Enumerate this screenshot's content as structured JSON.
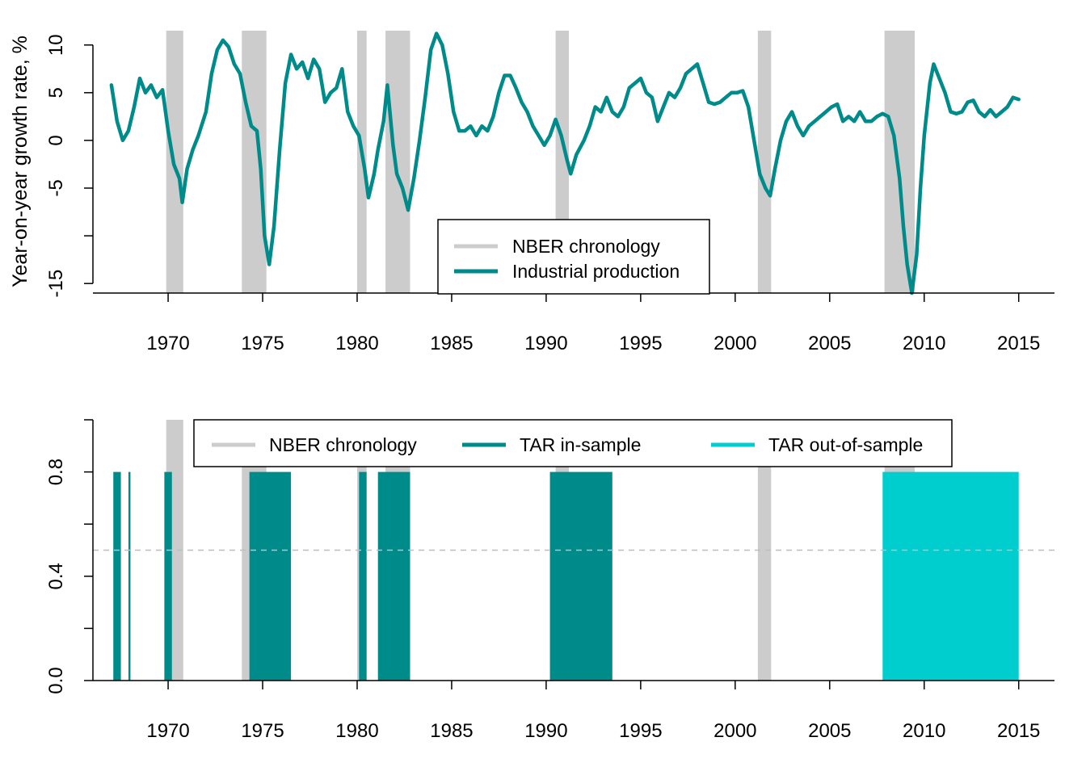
{
  "colors": {
    "nber": "#cccccc",
    "industrial_production": "#008b8b",
    "tar_in_sample": "#008b8b",
    "tar_out_of_sample": "#00cdcd",
    "threshold_line": "#bebebe"
  },
  "chart_data": [
    {
      "type": "line",
      "ylabel": "Year-on-year growth rate, %",
      "xlim": [
        1966,
        2017
      ],
      "ylim": [
        -16,
        11.5
      ],
      "x_ticks": [
        1970,
        1975,
        1980,
        1985,
        1990,
        1995,
        2000,
        2005,
        2010,
        2015
      ],
      "x_tick_labels": [
        "1970",
        "1975",
        "1980",
        "1985",
        "1990",
        "1995",
        "2000",
        "2005",
        "2010",
        "2015"
      ],
      "y_ticks": [
        -15,
        -10,
        -5,
        0,
        5,
        10
      ],
      "y_tick_labels": [
        "-15",
        "",
        "-5",
        "0",
        "5",
        "10"
      ],
      "legend_position": "bottom-center",
      "legend": [
        "NBER chronology",
        "Industrial production"
      ],
      "recessions": [
        [
          1969.9,
          1970.8
        ],
        [
          1973.9,
          1975.2
        ],
        [
          1980.0,
          1980.5
        ],
        [
          1981.5,
          1982.8
        ],
        [
          1990.5,
          1991.2
        ],
        [
          2001.2,
          2001.9
        ],
        [
          2007.9,
          2009.5
        ]
      ],
      "series": [
        {
          "name": "Industrial production",
          "points": [
            [
              1967.0,
              5.8
            ],
            [
              1967.3,
              2.0
            ],
            [
              1967.6,
              0.0
            ],
            [
              1967.9,
              1.0
            ],
            [
              1968.2,
              3.5
            ],
            [
              1968.5,
              6.5
            ],
            [
              1968.8,
              5.0
            ],
            [
              1969.1,
              5.8
            ],
            [
              1969.4,
              4.5
            ],
            [
              1969.7,
              5.3
            ],
            [
              1970.0,
              1.0
            ],
            [
              1970.3,
              -2.5
            ],
            [
              1970.6,
              -4.0
            ],
            [
              1970.75,
              -6.5
            ],
            [
              1971.0,
              -3.0
            ],
            [
              1971.3,
              -1.0
            ],
            [
              1971.6,
              0.5
            ],
            [
              1972.0,
              3.0
            ],
            [
              1972.3,
              7.0
            ],
            [
              1972.6,
              9.5
            ],
            [
              1972.9,
              10.5
            ],
            [
              1973.2,
              9.8
            ],
            [
              1973.5,
              8.0
            ],
            [
              1973.8,
              7.0
            ],
            [
              1974.1,
              4.0
            ],
            [
              1974.4,
              1.5
            ],
            [
              1974.7,
              1.0
            ],
            [
              1974.9,
              -3.0
            ],
            [
              1975.1,
              -10.0
            ],
            [
              1975.35,
              -13.0
            ],
            [
              1975.6,
              -9.0
            ],
            [
              1975.9,
              -1.0
            ],
            [
              1976.2,
              6.0
            ],
            [
              1976.5,
              9.0
            ],
            [
              1976.8,
              7.5
            ],
            [
              1977.1,
              8.2
            ],
            [
              1977.4,
              6.5
            ],
            [
              1977.7,
              8.5
            ],
            [
              1978.0,
              7.5
            ],
            [
              1978.3,
              4.0
            ],
            [
              1978.6,
              5.0
            ],
            [
              1978.9,
              5.5
            ],
            [
              1979.2,
              7.5
            ],
            [
              1979.5,
              3.0
            ],
            [
              1979.8,
              1.5
            ],
            [
              1980.1,
              0.5
            ],
            [
              1980.4,
              -3.0
            ],
            [
              1980.6,
              -6.0
            ],
            [
              1980.9,
              -3.5
            ],
            [
              1981.1,
              -1.0
            ],
            [
              1981.4,
              2.0
            ],
            [
              1981.6,
              5.8
            ],
            [
              1981.9,
              -0.5
            ],
            [
              1982.1,
              -3.5
            ],
            [
              1982.4,
              -5.0
            ],
            [
              1982.7,
              -7.3
            ],
            [
              1983.0,
              -4.0
            ],
            [
              1983.3,
              0.0
            ],
            [
              1983.6,
              4.5
            ],
            [
              1983.9,
              9.5
            ],
            [
              1984.2,
              11.2
            ],
            [
              1984.5,
              10.0
            ],
            [
              1984.8,
              7.0
            ],
            [
              1985.1,
              3.0
            ],
            [
              1985.4,
              1.0
            ],
            [
              1985.7,
              1.0
            ],
            [
              1986.0,
              1.5
            ],
            [
              1986.3,
              0.5
            ],
            [
              1986.6,
              1.5
            ],
            [
              1986.9,
              1.0
            ],
            [
              1987.2,
              2.5
            ],
            [
              1987.5,
              5.0
            ],
            [
              1987.8,
              6.8
            ],
            [
              1988.1,
              6.8
            ],
            [
              1988.4,
              5.5
            ],
            [
              1988.7,
              4.0
            ],
            [
              1989.0,
              3.0
            ],
            [
              1989.3,
              1.5
            ],
            [
              1989.6,
              0.5
            ],
            [
              1989.9,
              -0.5
            ],
            [
              1990.2,
              0.5
            ],
            [
              1990.5,
              2.2
            ],
            [
              1990.8,
              0.5
            ],
            [
              1991.1,
              -2.0
            ],
            [
              1991.3,
              -3.5
            ],
            [
              1991.6,
              -1.5
            ],
            [
              1992.0,
              0.0
            ],
            [
              1992.3,
              1.5
            ],
            [
              1992.6,
              3.5
            ],
            [
              1992.9,
              3.0
            ],
            [
              1993.2,
              4.5
            ],
            [
              1993.5,
              3.0
            ],
            [
              1993.8,
              2.5
            ],
            [
              1994.1,
              3.5
            ],
            [
              1994.4,
              5.5
            ],
            [
              1994.7,
              6.0
            ],
            [
              1995.0,
              6.5
            ],
            [
              1995.3,
              5.0
            ],
            [
              1995.6,
              4.5
            ],
            [
              1995.9,
              2.0
            ],
            [
              1996.2,
              3.5
            ],
            [
              1996.5,
              5.0
            ],
            [
              1996.8,
              4.5
            ],
            [
              1997.1,
              5.5
            ],
            [
              1997.4,
              7.0
            ],
            [
              1997.7,
              7.5
            ],
            [
              1998.0,
              8.0
            ],
            [
              1998.3,
              6.0
            ],
            [
              1998.6,
              4.0
            ],
            [
              1998.9,
              3.8
            ],
            [
              1999.2,
              4.0
            ],
            [
              1999.5,
              4.5
            ],
            [
              1999.8,
              5.0
            ],
            [
              2000.1,
              5.0
            ],
            [
              2000.4,
              5.2
            ],
            [
              2000.7,
              3.5
            ],
            [
              2001.0,
              0.0
            ],
            [
              2001.3,
              -3.5
            ],
            [
              2001.6,
              -5.0
            ],
            [
              2001.85,
              -5.8
            ],
            [
              2002.1,
              -3.0
            ],
            [
              2002.4,
              0.0
            ],
            [
              2002.7,
              2.0
            ],
            [
              2003.0,
              3.0
            ],
            [
              2003.3,
              1.5
            ],
            [
              2003.6,
              0.5
            ],
            [
              2003.9,
              1.5
            ],
            [
              2004.2,
              2.0
            ],
            [
              2004.5,
              2.5
            ],
            [
              2004.8,
              3.0
            ],
            [
              2005.1,
              3.5
            ],
            [
              2005.4,
              3.8
            ],
            [
              2005.7,
              2.0
            ],
            [
              2006.0,
              2.5
            ],
            [
              2006.3,
              2.0
            ],
            [
              2006.6,
              3.0
            ],
            [
              2006.9,
              2.0
            ],
            [
              2007.2,
              2.0
            ],
            [
              2007.5,
              2.5
            ],
            [
              2007.8,
              2.8
            ],
            [
              2008.1,
              2.5
            ],
            [
              2008.4,
              0.5
            ],
            [
              2008.7,
              -4.0
            ],
            [
              2008.9,
              -9.0
            ],
            [
              2009.1,
              -13.0
            ],
            [
              2009.35,
              -16.0
            ],
            [
              2009.6,
              -12.0
            ],
            [
              2009.8,
              -5.0
            ],
            [
              2010.0,
              0.5
            ],
            [
              2010.3,
              6.0
            ],
            [
              2010.5,
              8.0
            ],
            [
              2010.8,
              6.5
            ],
            [
              2011.1,
              5.0
            ],
            [
              2011.4,
              3.0
            ],
            [
              2011.7,
              2.8
            ],
            [
              2012.0,
              3.0
            ],
            [
              2012.3,
              4.0
            ],
            [
              2012.6,
              4.2
            ],
            [
              2012.9,
              3.0
            ],
            [
              2013.2,
              2.5
            ],
            [
              2013.5,
              3.2
            ],
            [
              2013.8,
              2.5
            ],
            [
              2014.1,
              3.0
            ],
            [
              2014.4,
              3.5
            ],
            [
              2014.7,
              4.5
            ],
            [
              2015.0,
              4.3
            ]
          ]
        }
      ]
    },
    {
      "type": "area",
      "xlim": [
        1966,
        2017
      ],
      "ylim": [
        0,
        1.0
      ],
      "x_ticks": [
        1970,
        1975,
        1980,
        1985,
        1990,
        1995,
        2000,
        2005,
        2010,
        2015
      ],
      "x_tick_labels": [
        "1970",
        "1975",
        "1980",
        "1985",
        "1990",
        "1995",
        "2000",
        "2005",
        "2010",
        "2015"
      ],
      "y_ticks": [
        0.0,
        0.2,
        0.4,
        0.6,
        0.8,
        1.0
      ],
      "y_tick_labels": [
        "0.0",
        "",
        "0.4",
        "",
        "0.8",
        ""
      ],
      "threshold": 0.5,
      "nber_height": 1.0,
      "legend_position": "top-center",
      "legend": [
        "NBER chronology",
        "TAR in-sample",
        "TAR out-of-sample"
      ],
      "recessions": [
        [
          1969.9,
          1970.8
        ],
        [
          1973.9,
          1975.2
        ],
        [
          1980.0,
          1980.5
        ],
        [
          1981.5,
          1982.8
        ],
        [
          1990.5,
          1991.2
        ],
        [
          2001.2,
          2001.9
        ],
        [
          2007.9,
          2009.5
        ]
      ],
      "series": [
        {
          "name": "TAR in-sample",
          "value": 0.8,
          "intervals": [
            [
              1967.1,
              1967.5
            ],
            [
              1967.9,
              1968.0
            ],
            [
              1969.8,
              1970.2
            ],
            [
              1974.3,
              1976.5
            ],
            [
              1980.1,
              1980.5
            ],
            [
              1981.1,
              1982.8
            ],
            [
              1990.2,
              1993.5
            ]
          ]
        },
        {
          "name": "TAR out-of-sample",
          "value": 0.8,
          "intervals": [
            [
              2007.8,
              2015.0
            ]
          ]
        }
      ]
    }
  ]
}
